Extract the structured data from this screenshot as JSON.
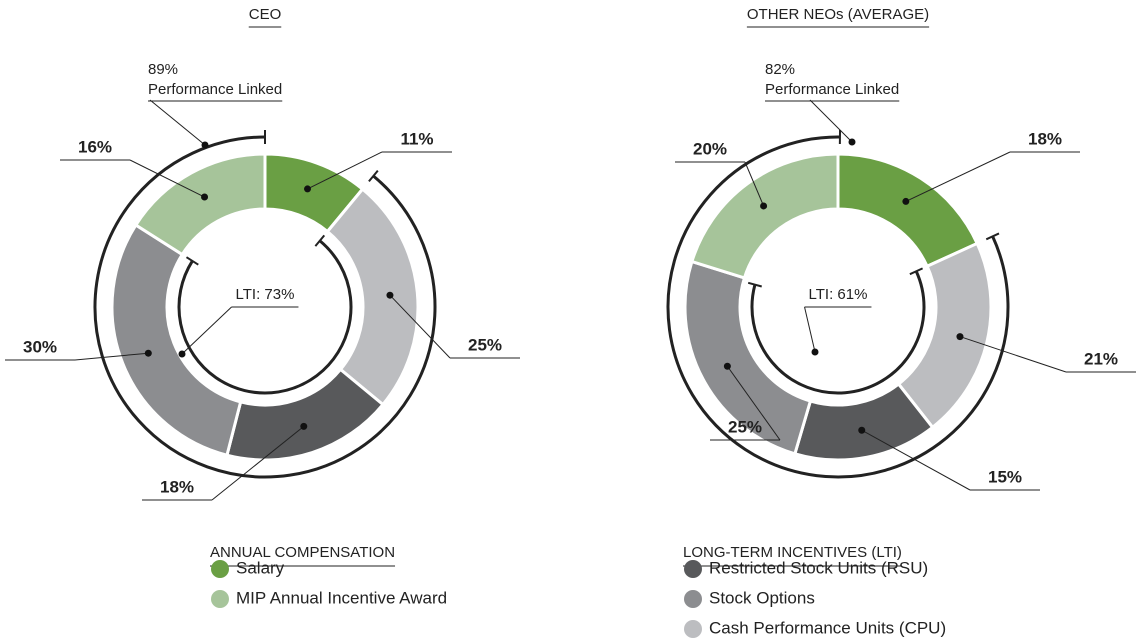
{
  "chart_data": [
    {
      "type": "pie",
      "title": "CEO",
      "categories": [
        "Salary",
        "MIP Annual Incentive Award",
        "Restricted Stock Units (RSU)",
        "Stock Options",
        "Cash Performance Units (CPU)"
      ],
      "values": [
        11,
        16,
        18,
        30,
        25
      ],
      "value_labels": [
        "11%",
        "16%",
        "18%",
        "30%",
        "25%"
      ],
      "colors": [
        "#6a9f44",
        "#a6c49a",
        "#58595b",
        "#8c8d90",
        "#bcbdc0"
      ],
      "performance_linked": {
        "value": 89,
        "label": "89%",
        "text": "Performance Linked"
      },
      "lti": {
        "value": 73,
        "label": "LTI: 73%"
      }
    },
    {
      "type": "pie",
      "title": "OTHER NEOs (AVERAGE)",
      "categories": [
        "Salary",
        "MIP Annual Incentive Award",
        "Restricted Stock Units (RSU)",
        "Stock Options",
        "Cash Performance Units (CPU)"
      ],
      "values": [
        18,
        20,
        15,
        25,
        21
      ],
      "value_labels": [
        "18%",
        "20%",
        "15%",
        "25%",
        "21%"
      ],
      "colors": [
        "#6a9f44",
        "#a6c49a",
        "#58595b",
        "#8c8d90",
        "#bcbdc0"
      ],
      "performance_linked": {
        "value": 82,
        "label": "82%",
        "text": "Performance Linked"
      },
      "lti": {
        "value": 61,
        "label": "LTI: 61%"
      }
    }
  ],
  "legend": [
    {
      "title": "ANNUAL COMPENSATION"
    },
    {
      "title": "LONG-TERM INCENTIVES (LTI)"
    }
  ]
}
